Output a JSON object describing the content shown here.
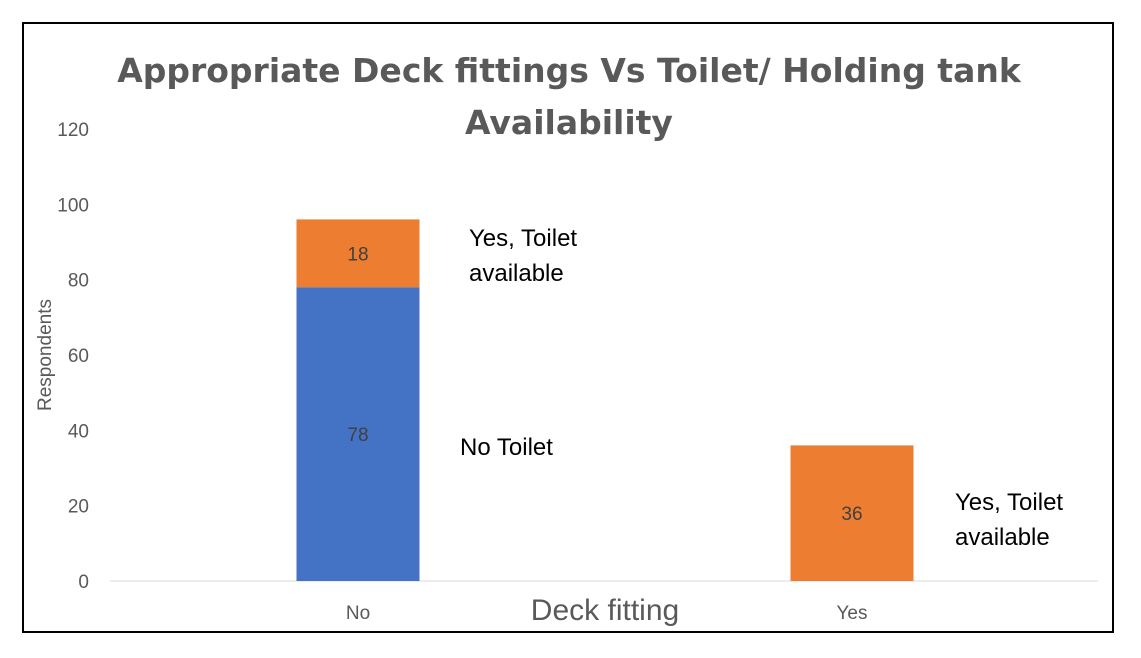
{
  "chart_data": {
    "type": "bar",
    "stacked": true,
    "title_lines": [
      "Appropriate Deck fittings Vs Toilet/ Holding tank",
      "Availability"
    ],
    "xlabel": "Deck fitting",
    "ylabel": "Respondents",
    "categories": [
      "No",
      "Yes"
    ],
    "ylim": [
      0,
      120
    ],
    "yticks": [
      0,
      20,
      40,
      60,
      80,
      100,
      120
    ],
    "grid": false,
    "legend": "none",
    "series": [
      {
        "name": "No Toilet",
        "values": [
          78,
          0
        ],
        "color": "#4472c4"
      },
      {
        "name": "Yes, Toilet available",
        "values": [
          18,
          36
        ],
        "color": "#ed7d31"
      }
    ],
    "annotations": [
      {
        "lines": [
          "Yes, Toilet",
          "available"
        ]
      },
      {
        "lines": [
          "No Toilet"
        ]
      },
      {
        "lines": [
          "Yes, Toilet",
          "available"
        ]
      }
    ]
  }
}
